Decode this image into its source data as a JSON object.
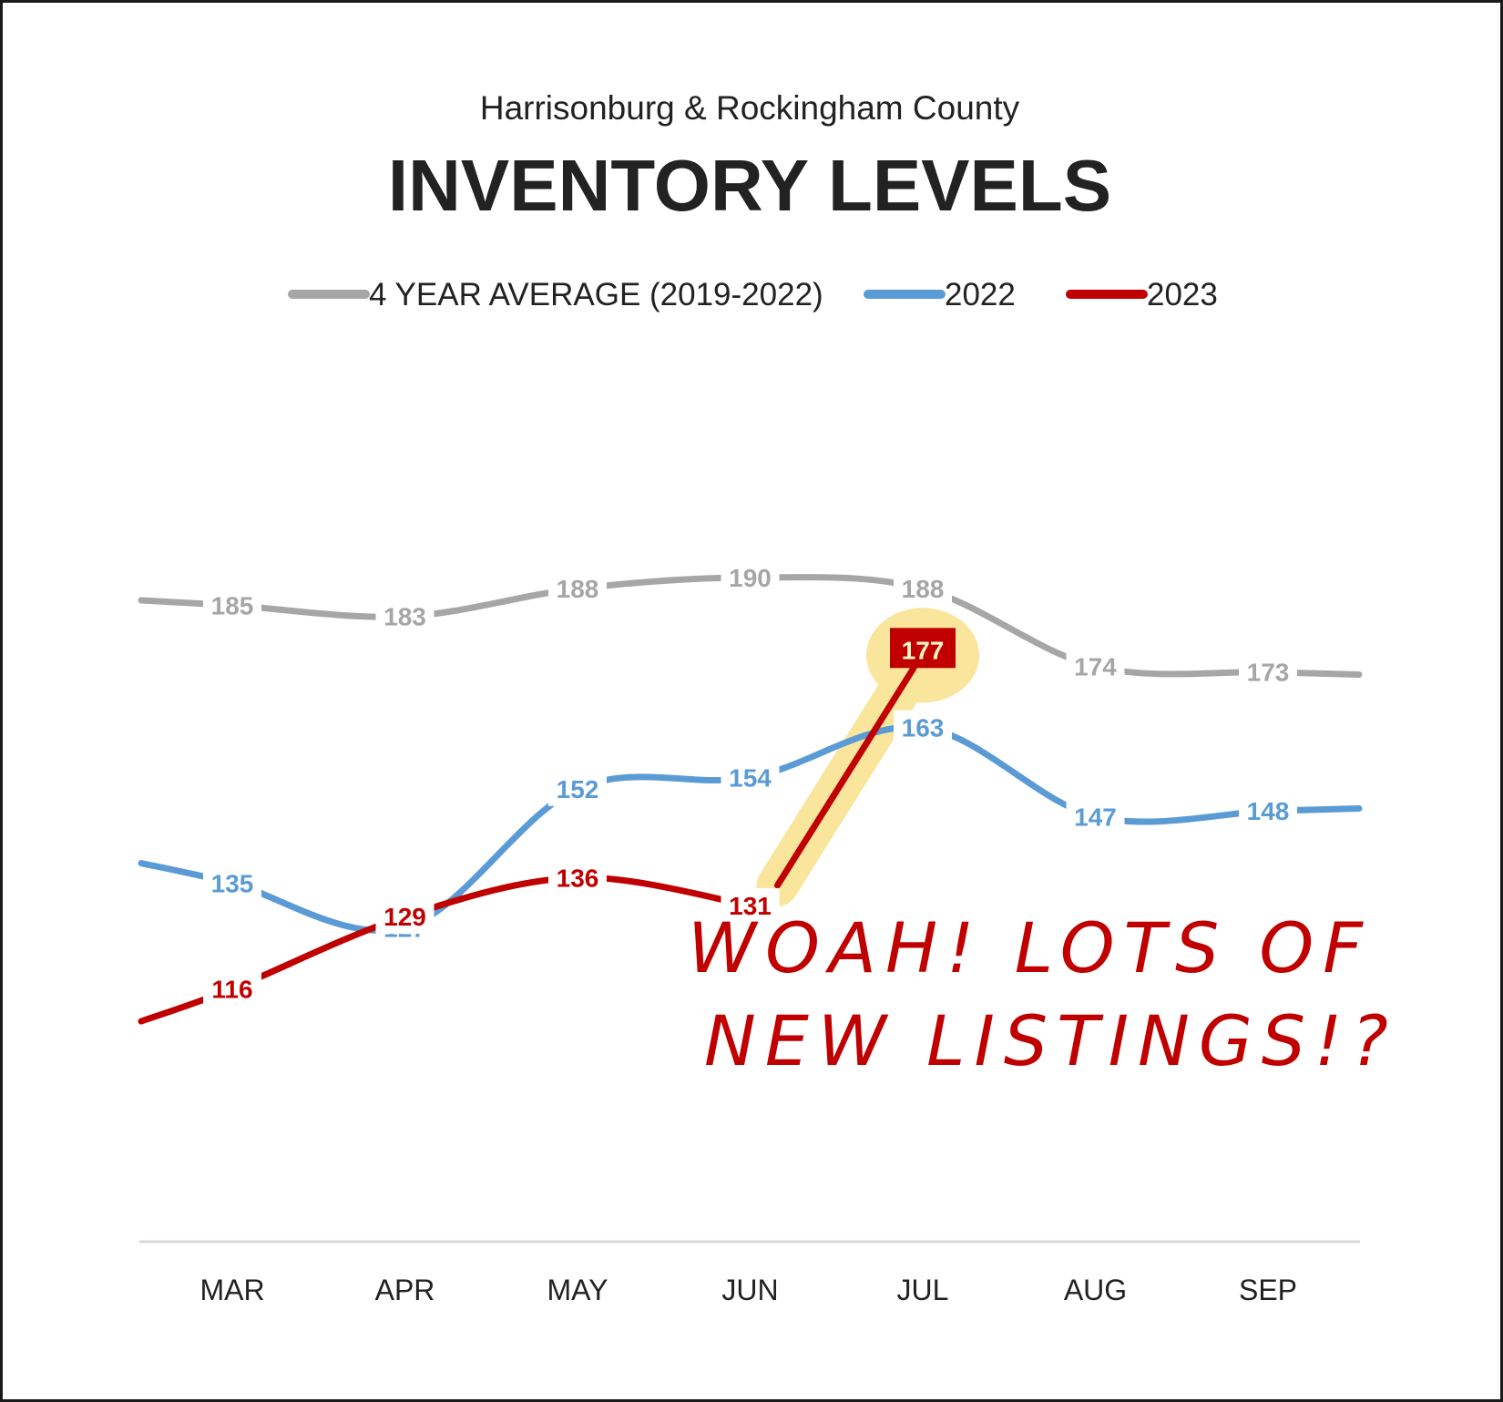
{
  "chart_data": {
    "type": "line",
    "title": "INVENTORY LEVELS",
    "subtitle": "Harrisonburg & Rockingham County",
    "categories": [
      "MAR",
      "APR",
      "MAY",
      "JUN",
      "JUL",
      "AUG",
      "SEP"
    ],
    "series": [
      {
        "name": "4 YEAR AVERAGE (2019-2022)",
        "color": "#a6a6a6",
        "values": [
          185,
          183,
          188,
          190,
          188,
          174,
          173
        ]
      },
      {
        "name": "2022",
        "color": "#5b9bd5",
        "values": [
          135,
          127,
          152,
          154,
          163,
          147,
          148
        ]
      },
      {
        "name": "2023",
        "color": "#c00000",
        "values": [
          116,
          129,
          136,
          131,
          177,
          null,
          null
        ]
      }
    ],
    "highlight": {
      "series": "2023",
      "category": "JUL",
      "value": 177,
      "highlight_color": "#fae59c"
    },
    "annotation": [
      "WOAH! LOTS OF",
      "NEW LISTINGS!?"
    ],
    "legend_position": "top",
    "grid": false,
    "ylim": [
      100,
      200
    ]
  }
}
